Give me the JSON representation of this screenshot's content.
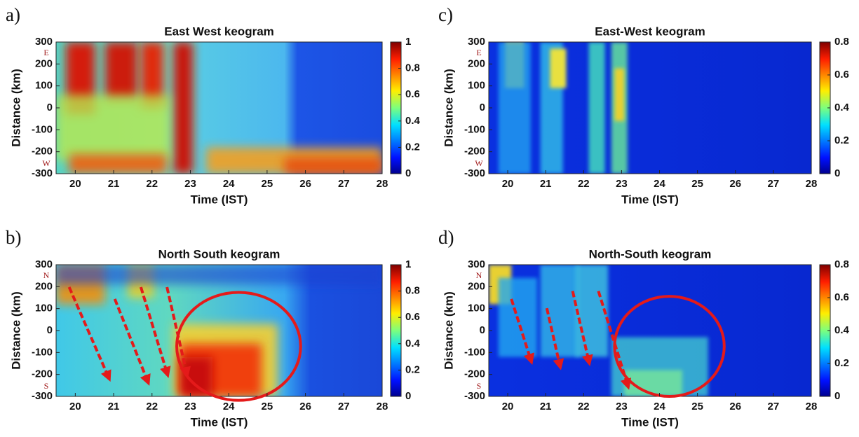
{
  "chart_data": [
    {
      "type": "heatmap",
      "panel_label": "a)",
      "title": "East West keogram",
      "x_label": "Time (IST)",
      "y_label": "Distance (km)",
      "xlim": [
        19.5,
        28
      ],
      "xticks": [
        20,
        21,
        22,
        23,
        24,
        25,
        26,
        27,
        28
      ],
      "ylim": [
        -300,
        300
      ],
      "yticks": [
        -300,
        -200,
        -100,
        0,
        100,
        200,
        300
      ],
      "colorbar_lim": [
        0,
        1
      ],
      "colorbar_ticks": [
        0,
        0.2,
        0.4,
        0.6,
        0.8,
        1
      ],
      "direction_labels": {
        "top": "E",
        "bottom": "W"
      }
    },
    {
      "type": "heatmap",
      "panel_label": "b)",
      "title": "North South keogram",
      "x_label": "Time (IST)",
      "y_label": "Distance (km)",
      "xlim": [
        19.5,
        28
      ],
      "xticks": [
        20,
        21,
        22,
        23,
        24,
        25,
        26,
        27,
        28
      ],
      "ylim": [
        -300,
        300
      ],
      "yticks": [
        -300,
        -200,
        -100,
        0,
        100,
        200,
        300
      ],
      "colorbar_lim": [
        0,
        1
      ],
      "colorbar_ticks": [
        0,
        0.2,
        0.4,
        0.6,
        0.8,
        1
      ],
      "direction_labels": {
        "top": "N",
        "bottom": "S"
      }
    },
    {
      "type": "heatmap",
      "panel_label": "c)",
      "title": "East-West keogram",
      "x_label": "Time (IST)",
      "y_label": "Distance (km)",
      "xlim": [
        19.5,
        28
      ],
      "xticks": [
        20,
        21,
        22,
        23,
        24,
        25,
        26,
        27,
        28
      ],
      "ylim": [
        -300,
        300
      ],
      "yticks": [
        -300,
        -200,
        -100,
        0,
        100,
        200,
        300
      ],
      "colorbar_lim": [
        0,
        0.8
      ],
      "colorbar_ticks": [
        0,
        0.2,
        0.4,
        0.6,
        0.8
      ],
      "direction_labels": {
        "top": "E",
        "bottom": "W"
      }
    },
    {
      "type": "heatmap",
      "panel_label": "d)",
      "title": "North-South keogram",
      "x_label": "Time (IST)",
      "y_label": "Distance (km)",
      "xlim": [
        19.5,
        28
      ],
      "xticks": [
        20,
        21,
        22,
        23,
        24,
        25,
        26,
        27,
        28
      ],
      "ylim": [
        -300,
        300
      ],
      "yticks": [
        -300,
        -200,
        -100,
        0,
        100,
        200,
        300
      ],
      "colorbar_lim": [
        0,
        0.8
      ],
      "colorbar_ticks": [
        0,
        0.2,
        0.4,
        0.6,
        0.8
      ],
      "direction_labels": {
        "top": "N",
        "bottom": "S"
      }
    }
  ]
}
